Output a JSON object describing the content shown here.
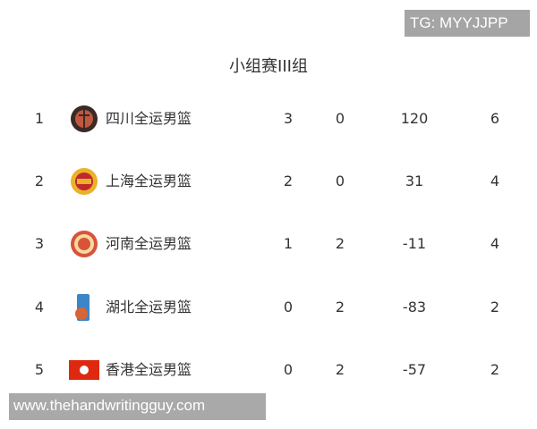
{
  "watermark_top": "TG: MYYJJPP",
  "title": "小组赛III组",
  "rows": [
    {
      "rank": "1",
      "logo": "sichuan-logo-icon",
      "team": "四川全运男篮",
      "wins": "3",
      "losses": "0",
      "diff": "120",
      "points": "6"
    },
    {
      "rank": "2",
      "logo": "shanghai-logo-icon",
      "team": "上海全运男篮",
      "wins": "2",
      "losses": "0",
      "diff": "31",
      "points": "4"
    },
    {
      "rank": "3",
      "logo": "henan-logo-icon",
      "team": "河南全运男篮",
      "wins": "1",
      "losses": "2",
      "diff": "-11",
      "points": "4"
    },
    {
      "rank": "4",
      "logo": "hubei-logo-icon",
      "team": "湖北全运男篮",
      "wins": "0",
      "losses": "2",
      "diff": "-83",
      "points": "2"
    },
    {
      "rank": "5",
      "logo": "hong-kong-flag-icon",
      "team": "香港全运男篮",
      "wins": "0",
      "losses": "2",
      "diff": "-57",
      "points": "2"
    }
  ],
  "watermark_bottom": "www.thehandwritingguy.com"
}
